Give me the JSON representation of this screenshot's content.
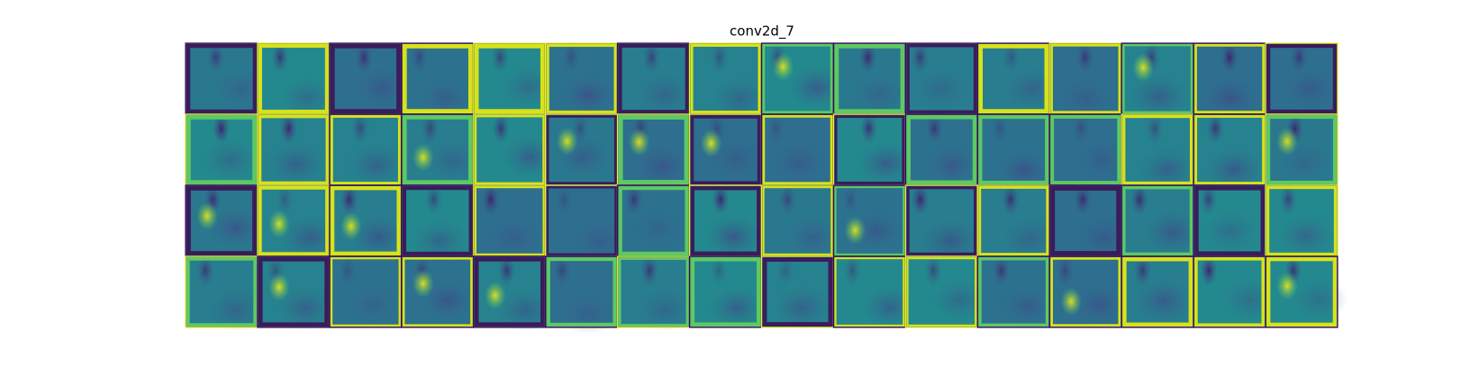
{
  "title": "conv2d_7"
}
